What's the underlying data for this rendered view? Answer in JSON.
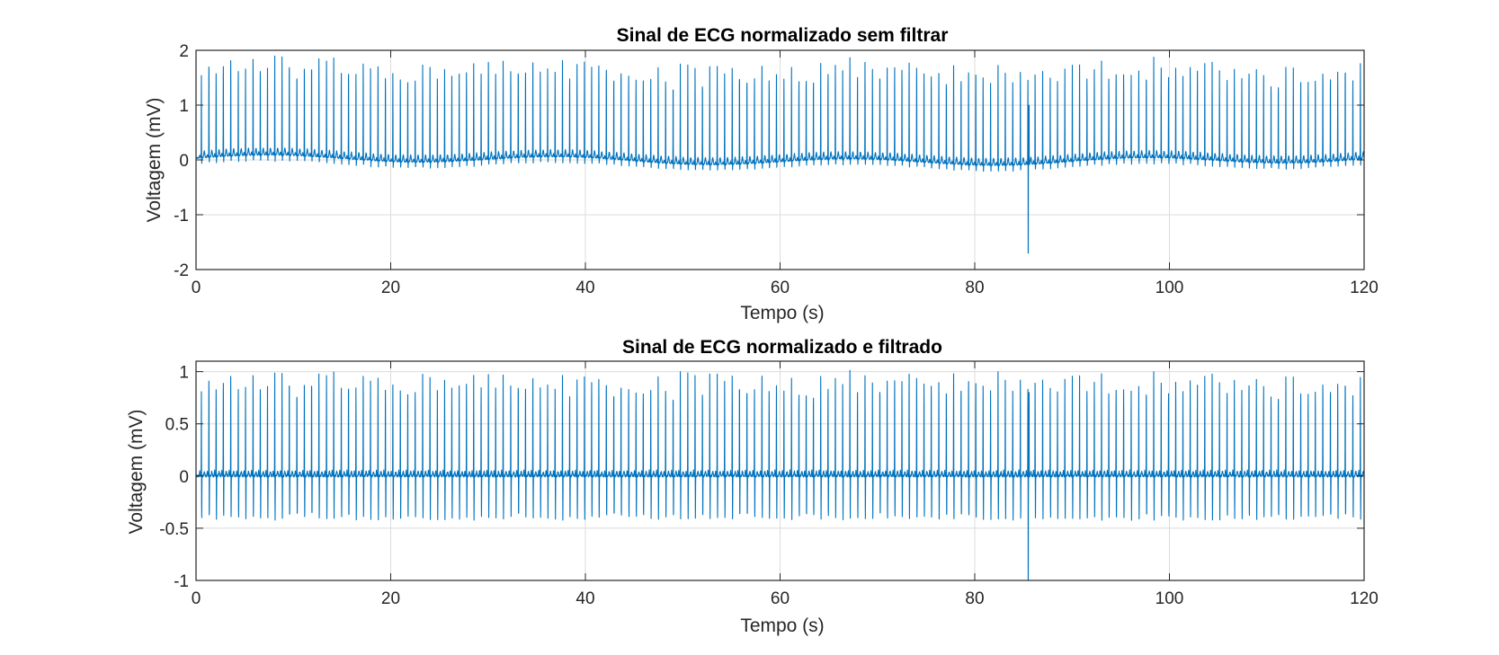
{
  "colors": {
    "trace": "#0072BD"
  },
  "chart_data": [
    {
      "type": "line",
      "title": "Sinal de ECG normalizado sem filtrar",
      "xlabel": "Tempo (s)",
      "ylabel": "Voltagem (mV)",
      "xlim": [
        0,
        120
      ],
      "ylim": [
        -2,
        2
      ],
      "xticks": [
        0,
        20,
        40,
        60,
        80,
        100,
        120
      ],
      "yticks": [
        -2,
        -1,
        0,
        1,
        2
      ],
      "xtick_labels": [
        "0",
        "20",
        "40",
        "60",
        "80",
        "100",
        "120"
      ],
      "ytick_labels": [
        "-2",
        "-1",
        "0",
        "1",
        "2"
      ],
      "grid": true,
      "series": [
        {
          "signal": "ecg",
          "beat_interval_s": 0.76,
          "r_peak_range": [
            1.5,
            1.85
          ],
          "s_trough": -0.12,
          "t_wave": 0.12,
          "baseline_wander": 0.06,
          "artifact": {
            "t": 85.5,
            "min": -1.7,
            "max": 1.0
          }
        }
      ]
    },
    {
      "type": "line",
      "title": "Sinal de ECG normalizado e filtrado",
      "xlabel": "Tempo (s)",
      "ylabel": "Voltagem (mV)",
      "xlim": [
        0,
        120
      ],
      "ylim": [
        -1,
        1.1
      ],
      "xticks": [
        0,
        20,
        40,
        60,
        80,
        100,
        120
      ],
      "yticks": [
        -1,
        -0.5,
        0,
        0.5,
        1
      ],
      "xtick_labels": [
        "0",
        "20",
        "40",
        "60",
        "80",
        "100",
        "120"
      ],
      "ytick_labels": [
        "-1",
        "-0.5",
        "0",
        "0.5",
        "1"
      ],
      "grid": true,
      "series": [
        {
          "signal": "ecg",
          "beat_interval_s": 0.76,
          "r_peak_range": [
            0.82,
            1.02
          ],
          "s_trough": -0.42,
          "t_wave": 0.04,
          "baseline_wander": 0.0,
          "artifact": {
            "t": 85.5,
            "min": -1.0,
            "max": 0.8
          }
        }
      ]
    }
  ]
}
